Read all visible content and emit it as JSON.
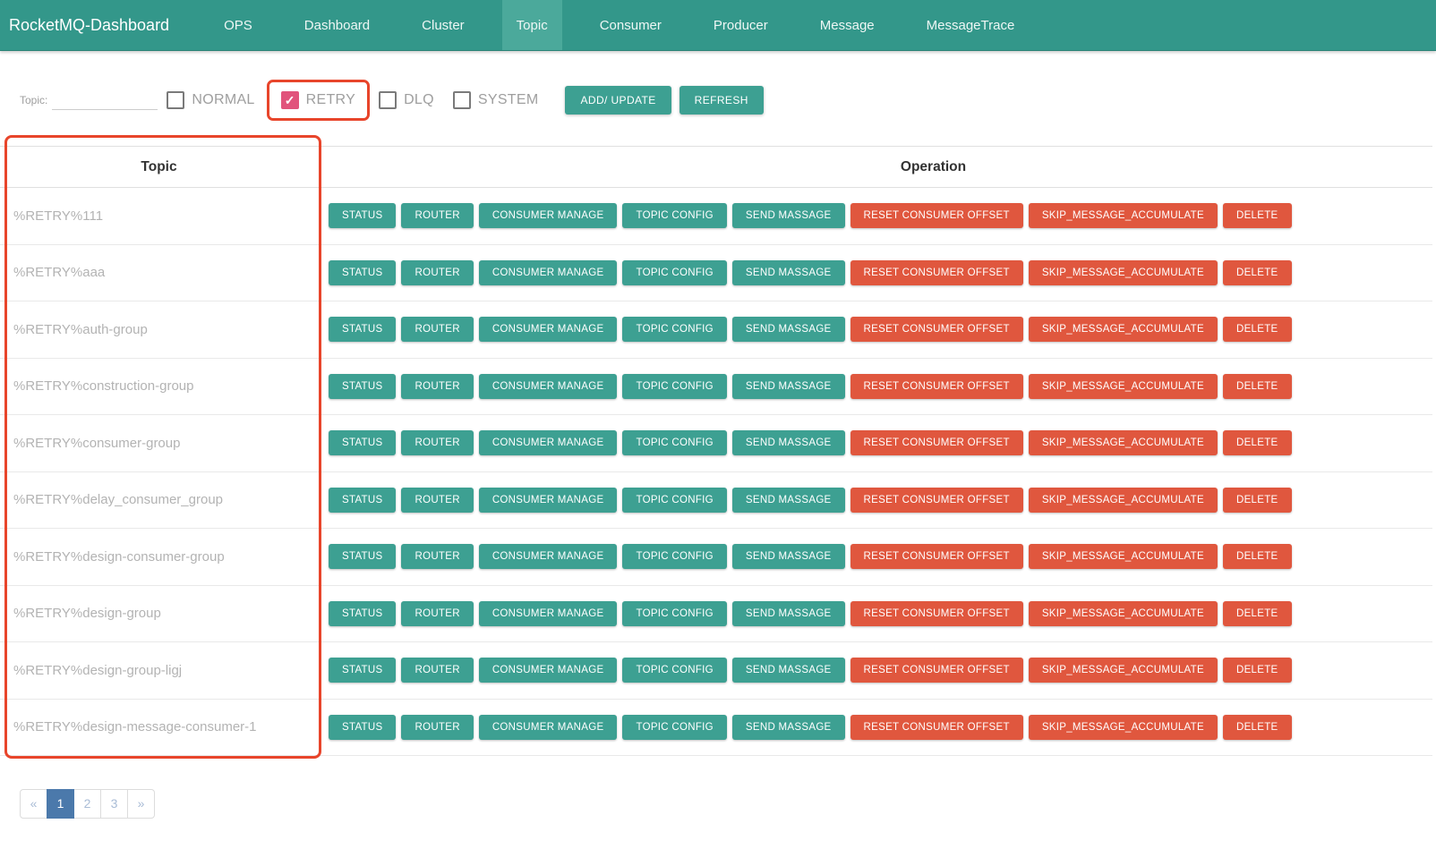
{
  "nav": {
    "brand": "RocketMQ-Dashboard",
    "items": [
      {
        "label": "OPS",
        "active": false
      },
      {
        "label": "Dashboard",
        "active": false
      },
      {
        "label": "Cluster",
        "active": false
      },
      {
        "label": "Topic",
        "active": true
      },
      {
        "label": "Consumer",
        "active": false
      },
      {
        "label": "Producer",
        "active": false
      },
      {
        "label": "Message",
        "active": false
      },
      {
        "label": "MessageTrace",
        "active": false
      }
    ]
  },
  "filter": {
    "topic_label": "Topic:",
    "topic_value": "",
    "checkboxes": [
      {
        "label": "NORMAL",
        "checked": false,
        "annotated": false
      },
      {
        "label": "RETRY",
        "checked": true,
        "annotated": true
      },
      {
        "label": "DLQ",
        "checked": false,
        "annotated": false
      },
      {
        "label": "SYSTEM",
        "checked": false,
        "annotated": false
      }
    ],
    "add_update_label": "ADD/ UPDATE",
    "refresh_label": "REFRESH"
  },
  "icons": {
    "check": "✓"
  },
  "table": {
    "headers": {
      "topic": "Topic",
      "operation": "Operation"
    },
    "operation_buttons": [
      {
        "label": "STATUS",
        "color": "teal"
      },
      {
        "label": "ROUTER",
        "color": "teal"
      },
      {
        "label": "CONSUMER MANAGE",
        "color": "teal"
      },
      {
        "label": "TOPIC CONFIG",
        "color": "teal"
      },
      {
        "label": "SEND MASSAGE",
        "color": "teal"
      },
      {
        "label": "RESET CONSUMER OFFSET",
        "color": "red"
      },
      {
        "label": "SKIP_MESSAGE_ACCUMULATE",
        "color": "red"
      },
      {
        "label": "DELETE",
        "color": "red"
      }
    ],
    "rows": [
      {
        "topic": "%RETRY%111"
      },
      {
        "topic": "%RETRY%aaa"
      },
      {
        "topic": "%RETRY%auth-group"
      },
      {
        "topic": "%RETRY%construction-group"
      },
      {
        "topic": "%RETRY%consumer-group"
      },
      {
        "topic": "%RETRY%delay_consumer_group"
      },
      {
        "topic": "%RETRY%design-consumer-group"
      },
      {
        "topic": "%RETRY%design-group"
      },
      {
        "topic": "%RETRY%design-group-ligj"
      },
      {
        "topic": "%RETRY%design-message-consumer-1"
      }
    ]
  },
  "pagination": {
    "items": [
      {
        "label": "«",
        "type": "prev",
        "active": false
      },
      {
        "label": "1",
        "type": "page",
        "active": true
      },
      {
        "label": "2",
        "type": "page",
        "active": false
      },
      {
        "label": "3",
        "type": "page",
        "active": false
      },
      {
        "label": "»",
        "type": "next",
        "active": false
      }
    ]
  },
  "colors": {
    "navbar_teal": "#33978A",
    "active_tab_teal": "#4BA99B",
    "button_teal": "#3DA092",
    "button_red": "#E0573E",
    "checkbox_checked_pink": "#E1547C",
    "annotation_red": "#E8452B",
    "pagination_active_blue": "#4B79AB"
  }
}
